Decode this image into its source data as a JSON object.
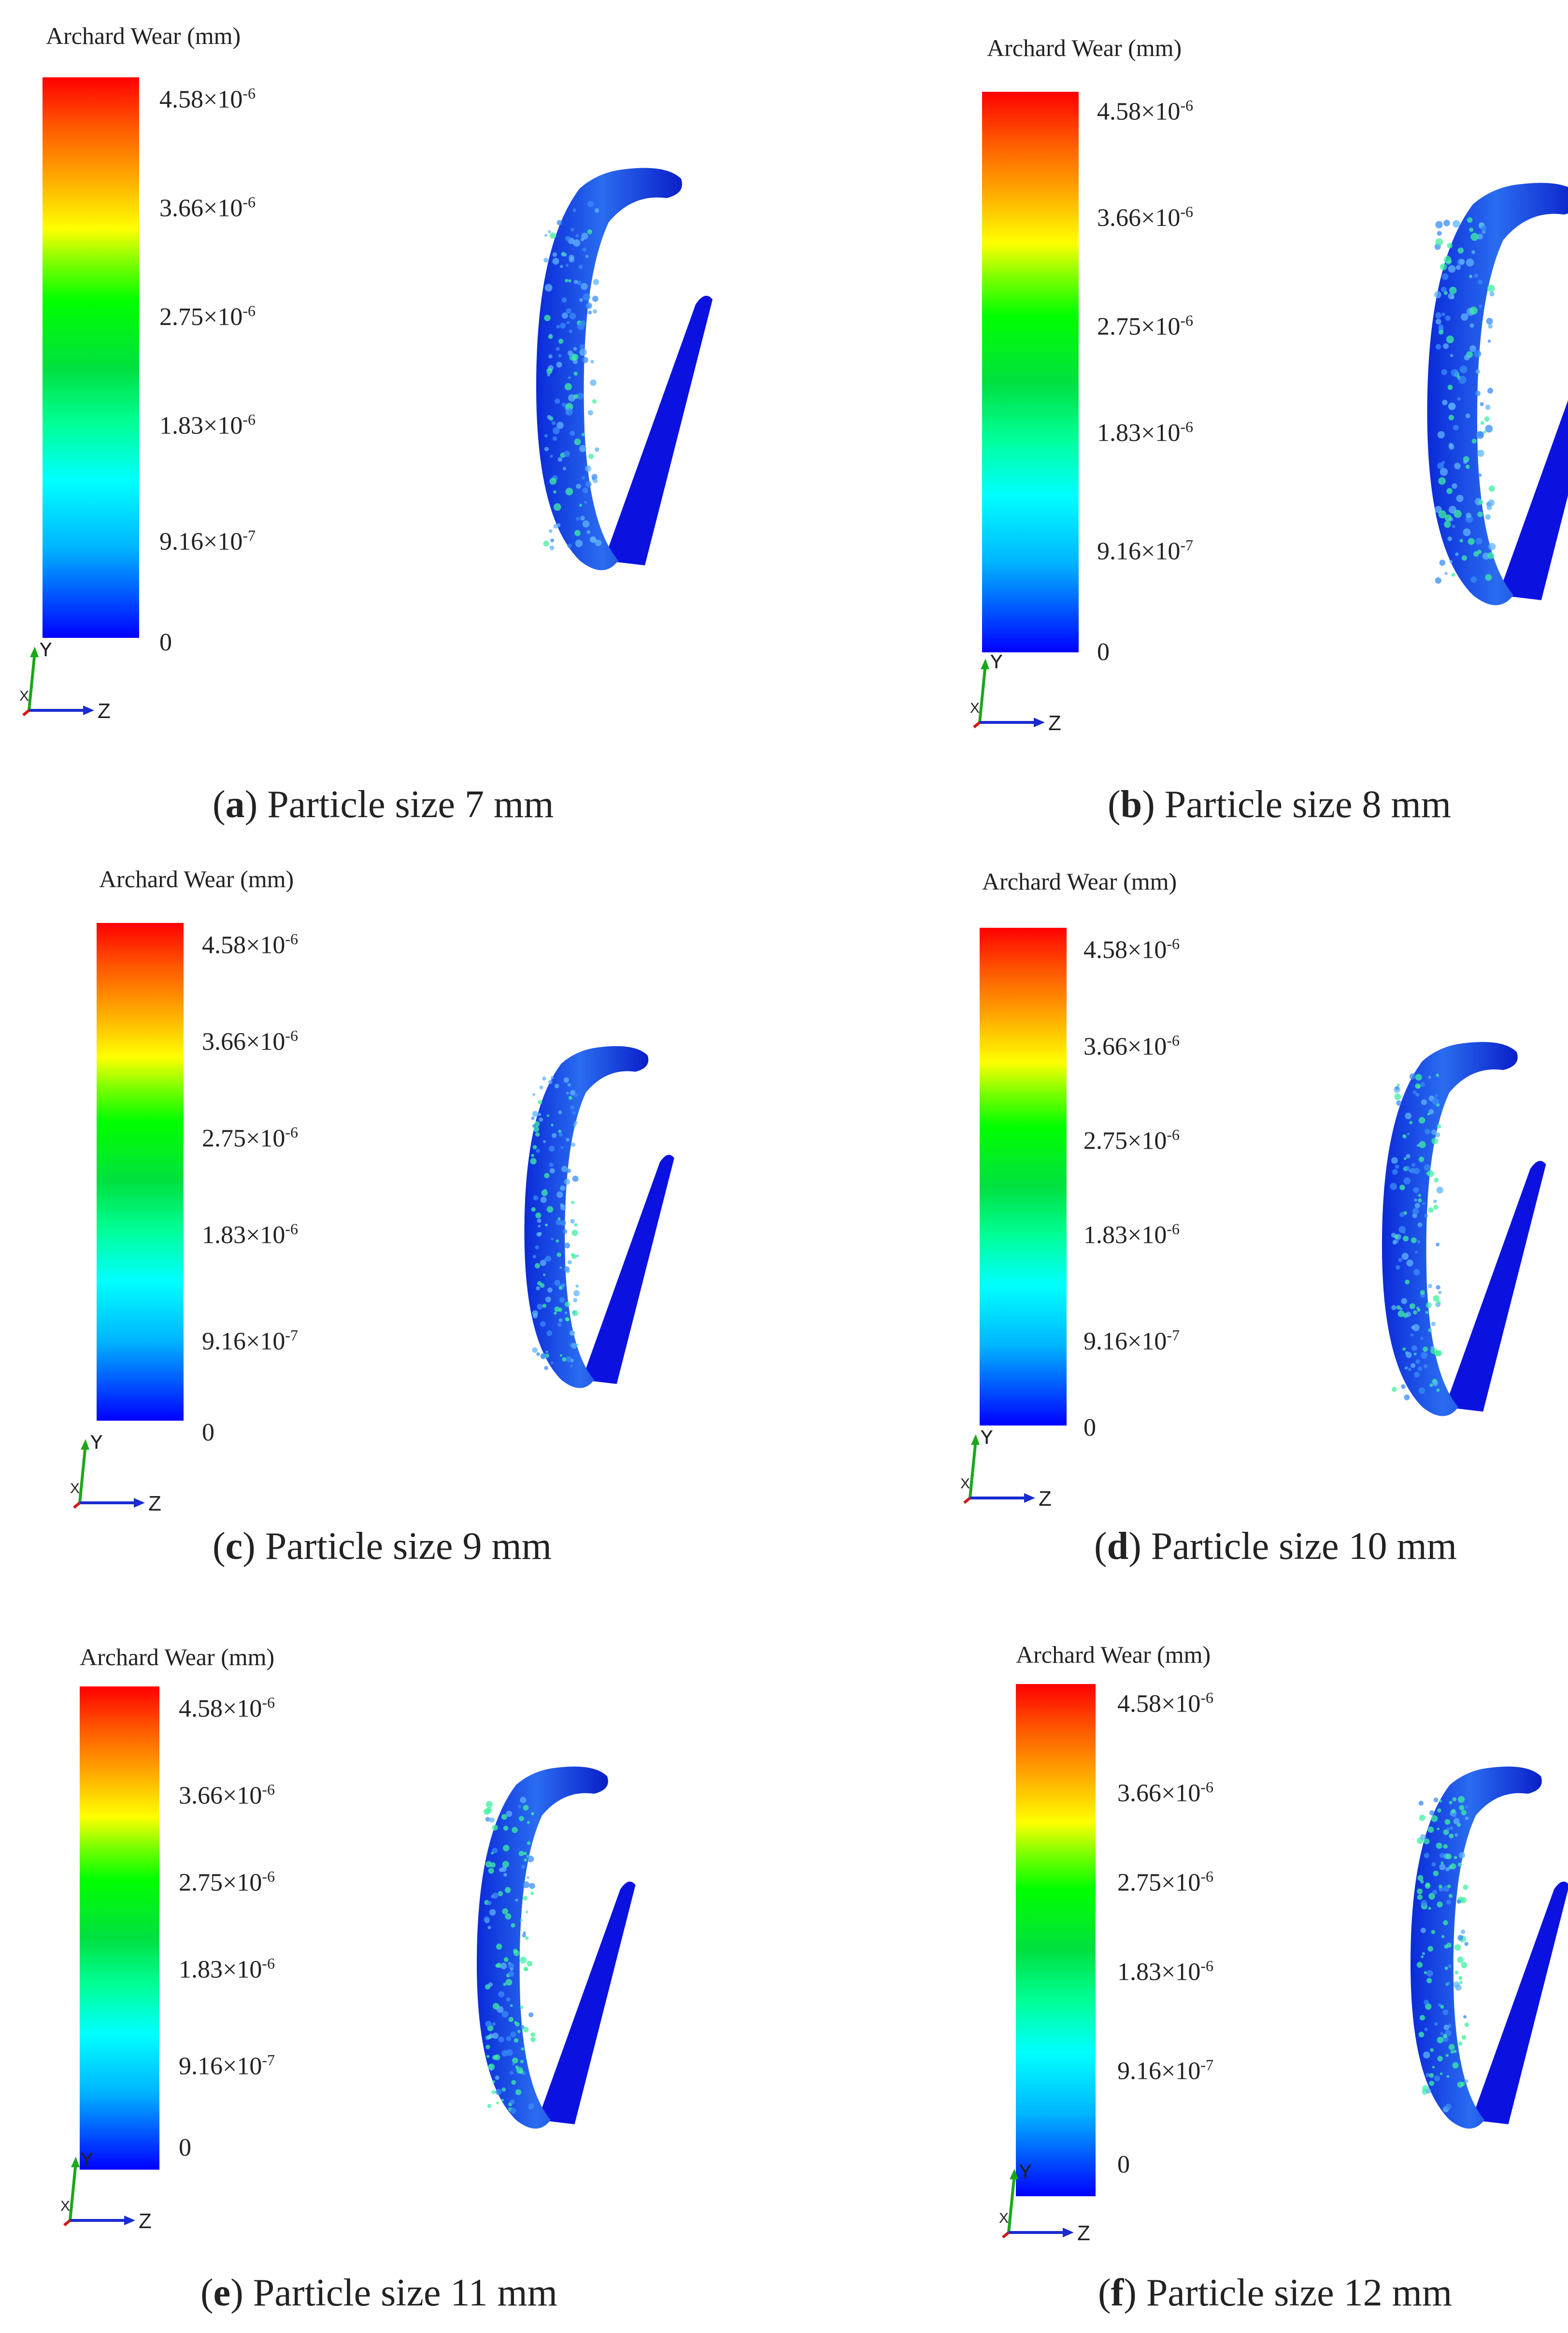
{
  "legend": {
    "title": "Archard Wear (mm)",
    "ticks": [
      {
        "m": "4.58",
        "e": "-6"
      },
      {
        "m": "3.66",
        "e": "-6"
      },
      {
        "m": "2.75",
        "e": "-6"
      },
      {
        "m": "1.83",
        "e": "-6"
      },
      {
        "m": "9.16",
        "e": "-7"
      },
      {
        "m": "0",
        "e": ""
      }
    ],
    "times": "×10",
    "colors": [
      "#ff0000",
      "#ffaa00",
      "#ffff00",
      "#00ff00",
      "#00ffff",
      "#0000ff"
    ]
  },
  "axes": {
    "y": "Y",
    "z": "Z",
    "x": "X"
  },
  "panels": [
    {
      "letter": "a",
      "caption": "Particle size 7 mm"
    },
    {
      "letter": "b",
      "caption": "Particle size 8 mm"
    },
    {
      "letter": "c",
      "caption": "Particle size 9 mm"
    },
    {
      "letter": "d",
      "caption": "Particle size 10 mm"
    },
    {
      "letter": "e",
      "caption": "Particle size 11 mm"
    },
    {
      "letter": "f",
      "caption": "Particle size 12 mm"
    }
  ]
}
